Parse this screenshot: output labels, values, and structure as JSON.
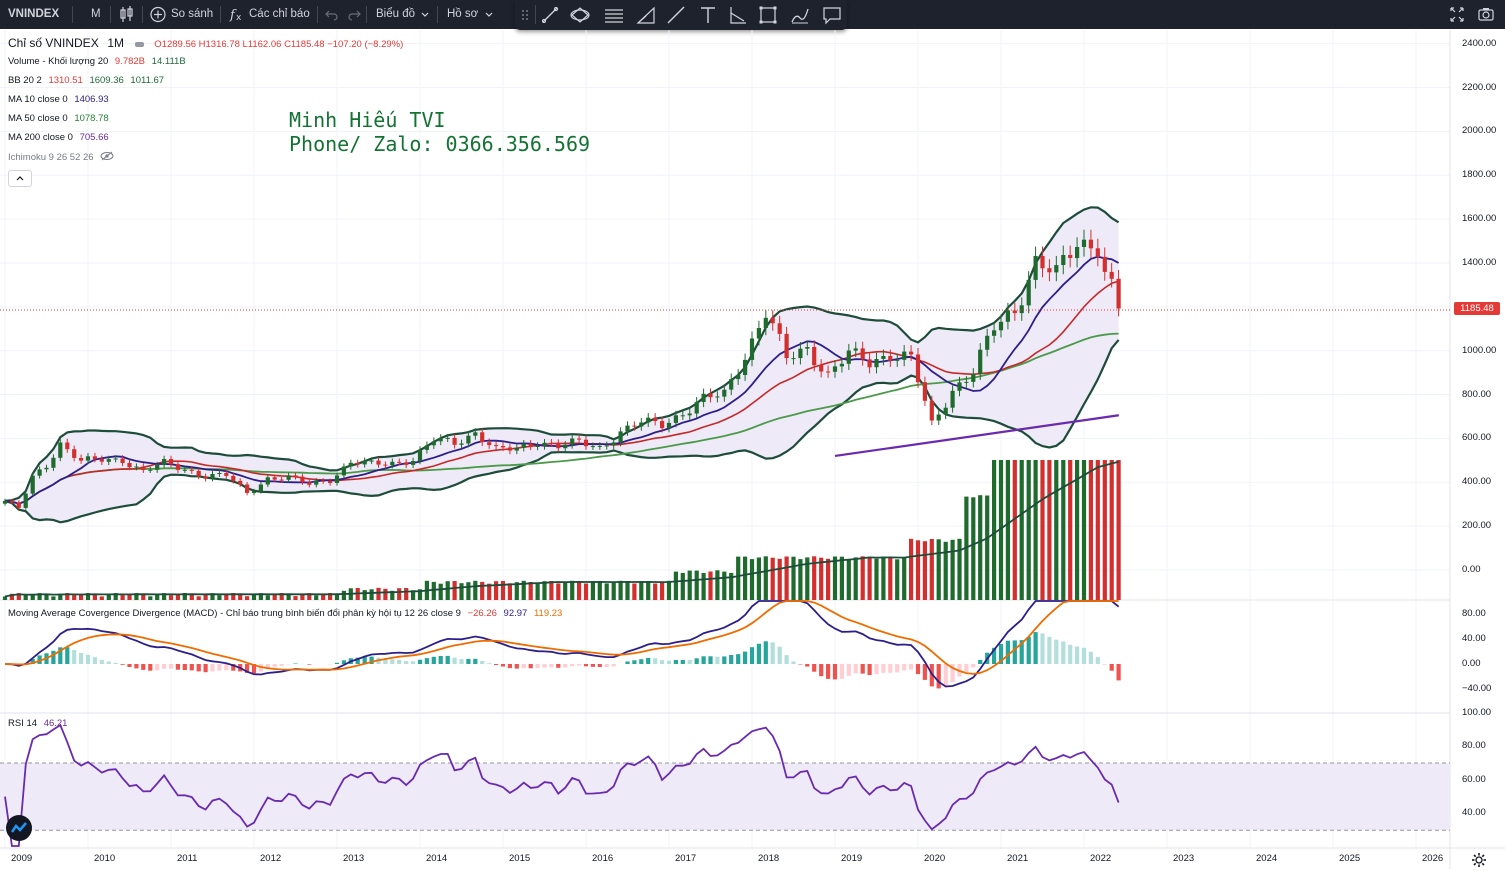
{
  "toolbar": {
    "symbol": "VNINDEX",
    "interval": "M",
    "compare_label": "So sánh",
    "indicators_label": "Các chỉ báo",
    "chart_type_label": "Biểu đồ",
    "profile_label": "Hồ sơ"
  },
  "drawing_tools": [
    "grip-icon",
    "trend-line-icon",
    "ellipse-icon",
    "parallel-channel-icon",
    "triangle-pattern-icon",
    "line-icon",
    "text-icon",
    "angle-icon",
    "rectangle-icon",
    "brush-icon",
    "callout-icon"
  ],
  "legend": {
    "title": "Chỉ số VNINDEX",
    "interval": "1M",
    "ohlc": "O1289.56  H1316.78  L1162.06  C1185.48  −107.20 (−8.29%)",
    "volume_label": "Volume - Khối lượng 20",
    "volume_v1": "9.782B",
    "volume_v2": "14.111B",
    "bb_label": "BB 20 2",
    "bb_mid": "1310.51",
    "bb_up": "1609.36",
    "bb_low": "1011.67",
    "ma10_label": "MA 10 close 0",
    "ma10_val": "1406.93",
    "ma50_label": "MA 50 close 0",
    "ma50_val": "1078.78",
    "ma200_label": "MA 200 close 0",
    "ma200_val": "705.66",
    "ichimoku_label": "Ichimoku 9 26 52 26"
  },
  "watermark": {
    "line1": "Minh Hiếu TVI",
    "line2": "Phone/ Zalo: 0366.356.569"
  },
  "macd_legend": {
    "label": "Moving Average Covergence Divergence (MACD) - Chỉ báo trung bình biến đổi phân kỳ hội tụ 12 26 close 9",
    "v1": "−26.26",
    "v2": "92.97",
    "v3": "119.23"
  },
  "rsi_legend": {
    "label": "RSI 14",
    "value": "46.21"
  },
  "last_price_tag": "1185.48",
  "price_axis": [
    "2400.00",
    "2200.00",
    "2000.00",
    "1800.00",
    "1600.00",
    "1400.00",
    "1200.00",
    "1000.00",
    "800.00",
    "600.00",
    "400.00",
    "200.00",
    "0.00"
  ],
  "macd_axis": [
    "80.00",
    "40.00",
    "0.00",
    "−40.00"
  ],
  "rsi_axis": [
    "100.00",
    "80.00",
    "60.00",
    "40.00"
  ],
  "time_axis": [
    "2009",
    "2010",
    "2011",
    "2012",
    "2013",
    "2014",
    "2015",
    "2016",
    "2017",
    "2018",
    "2019",
    "2020",
    "2021",
    "2022",
    "2023",
    "2024",
    "2025",
    "2026"
  ],
  "colors": {
    "up": "#1f6b2e",
    "down": "#d32f2f",
    "bb": "#1d4d3a",
    "ma10": "#2d1f8a",
    "ma20": "#c62828",
    "ma50": "#4a9a4a",
    "ma200": "#6a2ab0",
    "macd": "#2d1f8a",
    "signal": "#ef6c00",
    "rsi": "#6a2ab0"
  },
  "chart_data": {
    "type": "candlestick",
    "interval": "1M",
    "ylim": [
      0,
      2400
    ],
    "closes": [
      {
        "date": "2009-01",
        "close": 315
      },
      {
        "date": "2009-03",
        "close": 280
      },
      {
        "date": "2009-05",
        "close": 420
      },
      {
        "date": "2009-07",
        "close": 480
      },
      {
        "date": "2009-09",
        "close": 580
      },
      {
        "date": "2009-12",
        "close": 495
      },
      {
        "date": "2010-03",
        "close": 500
      },
      {
        "date": "2010-06",
        "close": 505
      },
      {
        "date": "2010-09",
        "close": 450
      },
      {
        "date": "2010-12",
        "close": 485
      },
      {
        "date": "2011-03",
        "close": 460
      },
      {
        "date": "2011-06",
        "close": 430
      },
      {
        "date": "2011-09",
        "close": 430
      },
      {
        "date": "2011-12",
        "close": 350
      },
      {
        "date": "2012-03",
        "close": 420
      },
      {
        "date": "2012-06",
        "close": 420
      },
      {
        "date": "2012-09",
        "close": 390
      },
      {
        "date": "2012-12",
        "close": 415
      },
      {
        "date": "2013-03",
        "close": 490
      },
      {
        "date": "2013-06",
        "close": 480
      },
      {
        "date": "2013-09",
        "close": 490
      },
      {
        "date": "2013-12",
        "close": 505
      },
      {
        "date": "2014-03",
        "close": 590
      },
      {
        "date": "2014-06",
        "close": 580
      },
      {
        "date": "2014-09",
        "close": 630
      },
      {
        "date": "2014-12",
        "close": 545
      },
      {
        "date": "2015-03",
        "close": 550
      },
      {
        "date": "2015-06",
        "close": 590
      },
      {
        "date": "2015-09",
        "close": 565
      },
      {
        "date": "2015-12",
        "close": 580
      },
      {
        "date": "2016-03",
        "close": 560
      },
      {
        "date": "2016-06",
        "close": 630
      },
      {
        "date": "2016-09",
        "close": 670
      },
      {
        "date": "2016-12",
        "close": 665
      },
      {
        "date": "2017-03",
        "close": 720
      },
      {
        "date": "2017-06",
        "close": 775
      },
      {
        "date": "2017-09",
        "close": 800
      },
      {
        "date": "2017-12",
        "close": 985
      },
      {
        "date": "2018-03",
        "close": 1175
      },
      {
        "date": "2018-06",
        "close": 960
      },
      {
        "date": "2018-09",
        "close": 1015
      },
      {
        "date": "2018-12",
        "close": 890
      },
      {
        "date": "2019-03",
        "close": 980
      },
      {
        "date": "2019-06",
        "close": 950
      },
      {
        "date": "2019-09",
        "close": 990
      },
      {
        "date": "2019-12",
        "close": 960
      },
      {
        "date": "2020-03",
        "close": 660
      },
      {
        "date": "2020-06",
        "close": 825
      },
      {
        "date": "2020-09",
        "close": 905
      },
      {
        "date": "2020-12",
        "close": 1100
      },
      {
        "date": "2021-03",
        "close": 1190
      },
      {
        "date": "2021-06",
        "close": 1410
      },
      {
        "date": "2021-09",
        "close": 1340
      },
      {
        "date": "2021-12",
        "close": 1495
      },
      {
        "date": "2022-03",
        "close": 1490
      },
      {
        "date": "2022-04",
        "close": 1365
      },
      {
        "date": "2022-05",
        "close": 1290
      },
      {
        "date": "2022-06",
        "close": 1185
      }
    ]
  }
}
